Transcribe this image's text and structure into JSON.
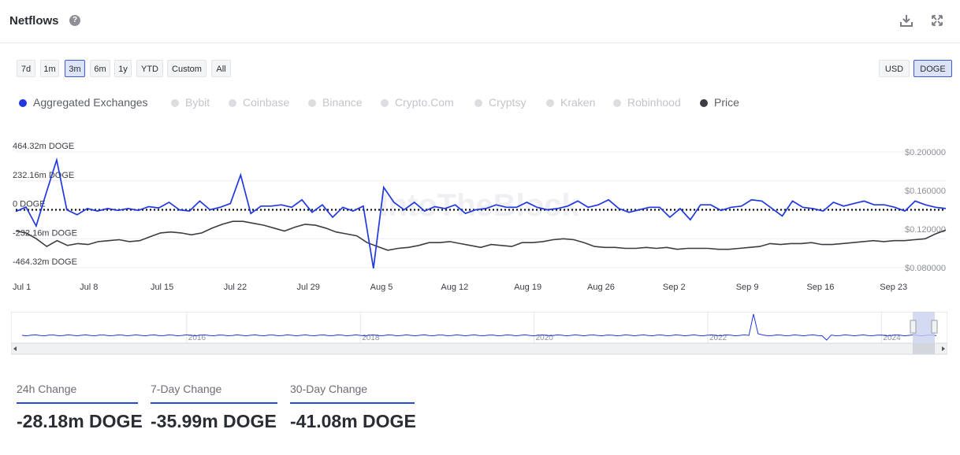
{
  "header": {
    "title": "Netflows",
    "help_icon": "question-circle-icon",
    "download_icon": "download-icon",
    "fullscreen_icon": "expand-icon"
  },
  "ranges": [
    {
      "label": "7d",
      "active": false
    },
    {
      "label": "1m",
      "active": false
    },
    {
      "label": "3m",
      "active": true
    },
    {
      "label": "6m",
      "active": false
    },
    {
      "label": "1y",
      "active": false
    },
    {
      "label": "YTD",
      "active": false
    },
    {
      "label": "Custom",
      "active": false
    },
    {
      "label": "All",
      "active": false
    }
  ],
  "currency": [
    {
      "label": "USD",
      "active": false
    },
    {
      "label": "DOGE",
      "active": true
    }
  ],
  "legend": [
    {
      "label": "Aggregated Exchanges",
      "color": "#2138e0",
      "enabled": true
    },
    {
      "label": "Bybit",
      "color": "#dcdde0",
      "enabled": false
    },
    {
      "label": "Coinbase",
      "color": "#dcdde0",
      "enabled": false
    },
    {
      "label": "Binance",
      "color": "#dcdde0",
      "enabled": false
    },
    {
      "label": "Crypto.Com",
      "color": "#dcdde0",
      "enabled": false
    },
    {
      "label": "Cryptsy",
      "color": "#dcdde0",
      "enabled": false
    },
    {
      "label": "Kraken",
      "color": "#dcdde0",
      "enabled": false
    },
    {
      "label": "Robinhood",
      "color": "#dcdde0",
      "enabled": false
    },
    {
      "label": "Price",
      "color": "#3b3d42",
      "enabled": true
    }
  ],
  "chart_data": {
    "type": "line",
    "watermark": "IntoTheBlock",
    "x_days": 89,
    "x_tick_labels": [
      "Jul 1",
      "Jul 8",
      "Jul 15",
      "Jul 22",
      "Jul 29",
      "Aug 5",
      "Aug 12",
      "Aug 19",
      "Aug 26",
      "Sep 2",
      "Sep 9",
      "Sep 16",
      "Sep 23"
    ],
    "x_tick_days": [
      0,
      7,
      14,
      21,
      28,
      35,
      42,
      49,
      56,
      63,
      70,
      77,
      84
    ],
    "y_left": {
      "unit": "m DOGE",
      "range": [
        -464.32,
        464.32
      ],
      "tick_labels": [
        "464.32m DOGE",
        "232.16m DOGE",
        "0 DOGE",
        "-232.16m DOGE",
        "-464.32m DOGE"
      ],
      "ticks": [
        464.32,
        232.16,
        0,
        -232.16,
        -464.32
      ]
    },
    "y_right": {
      "unit": "USD",
      "range": [
        0.08,
        0.2
      ],
      "tick_labels": [
        "$0.200000",
        "$0.160000",
        "$0.120000",
        "$0.080000"
      ],
      "ticks": [
        0.2,
        0.16,
        0.12,
        0.08
      ]
    },
    "zero_line": "dotted",
    "series": [
      {
        "name": "Aggregated Exchanges",
        "axis": "left",
        "color": "#2138e0",
        "values": [
          -14,
          22,
          -130,
          140,
          400,
          0,
          -40,
          10,
          -10,
          10,
          -5,
          10,
          -5,
          25,
          15,
          60,
          0,
          -10,
          70,
          0,
          20,
          50,
          280,
          -30,
          30,
          30,
          40,
          20,
          80,
          -20,
          40,
          -60,
          20,
          -10,
          30,
          -470,
          180,
          60,
          0,
          60,
          -10,
          25,
          10,
          40,
          -30,
          0,
          10,
          40,
          20,
          20,
          60,
          20,
          0,
          10,
          30,
          70,
          20,
          40,
          80,
          10,
          -20,
          0,
          20,
          20,
          -60,
          10,
          -80,
          40,
          40,
          -5,
          20,
          30,
          80,
          70,
          10,
          -50,
          70,
          20,
          10,
          -10,
          60,
          30,
          50,
          70,
          40,
          40,
          20,
          -10,
          70,
          40,
          20,
          10
        ]
      },
      {
        "name": "Price",
        "axis": "right",
        "color": "#3b3d42",
        "values": [
          0.118,
          0.116,
          0.11,
          0.102,
          0.108,
          0.103,
          0.105,
          0.104,
          0.107,
          0.108,
          0.109,
          0.107,
          0.108,
          0.112,
          0.116,
          0.117,
          0.116,
          0.114,
          0.116,
          0.121,
          0.125,
          0.128,
          0.128,
          0.126,
          0.124,
          0.121,
          0.118,
          0.122,
          0.125,
          0.124,
          0.121,
          0.117,
          0.115,
          0.113,
          0.106,
          0.102,
          0.098,
          0.1,
          0.101,
          0.103,
          0.106,
          0.106,
          0.107,
          0.105,
          0.103,
          0.101,
          0.104,
          0.103,
          0.102,
          0.106,
          0.106,
          0.107,
          0.109,
          0.11,
          0.109,
          0.106,
          0.102,
          0.101,
          0.101,
          0.1,
          0.1,
          0.101,
          0.1,
          0.101,
          0.099,
          0.1,
          0.1,
          0.1,
          0.099,
          0.099,
          0.1,
          0.101,
          0.102,
          0.105,
          0.104,
          0.105,
          0.105,
          0.106,
          0.104,
          0.104,
          0.105,
          0.106,
          0.107,
          0.108,
          0.107,
          0.108,
          0.108,
          0.109,
          0.11,
          0.115,
          0.119
        ]
      }
    ],
    "navigator": {
      "year_labels": [
        "2016",
        "2018",
        "2020",
        "2022",
        "2024"
      ],
      "year_positions": [
        0.18,
        0.37,
        0.56,
        0.75,
        0.94
      ]
    }
  },
  "stats": [
    {
      "label": "24h Change",
      "value": "-28.18m DOGE"
    },
    {
      "label": "7-Day Change",
      "value": "-35.99m DOGE"
    },
    {
      "label": "30-Day Change",
      "value": "-41.08m DOGE"
    }
  ]
}
